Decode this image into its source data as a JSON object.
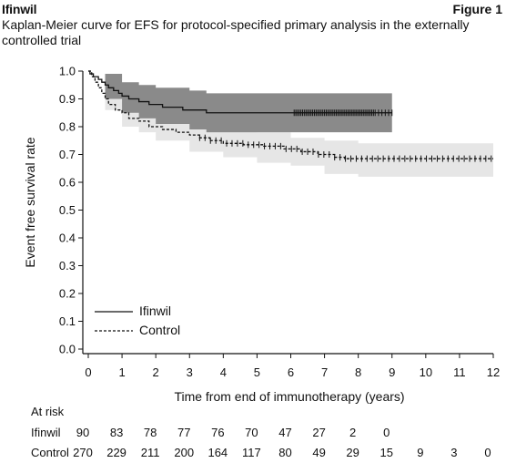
{
  "header": {
    "brand": "Ifinwil",
    "figure_label": "Figure 1",
    "subtitle": "Kaplan-Meier curve for EFS for protocol-specified primary analysis in the externally controlled trial"
  },
  "chart_data": {
    "type": "line",
    "subtype": "kaplan-meier",
    "xlabel": "Time from end of immunotherapy (years)",
    "ylabel": "Event free survival rate",
    "xlim": [
      0,
      12
    ],
    "ylim": [
      0,
      1
    ],
    "x_ticks": [
      0,
      1,
      2,
      3,
      4,
      5,
      6,
      7,
      8,
      9,
      10,
      11,
      12
    ],
    "y_ticks": [
      0.0,
      0.1,
      0.2,
      0.3,
      0.4,
      0.5,
      0.6,
      0.7,
      0.8,
      0.9,
      1.0
    ],
    "legend_position": "bottom-left",
    "series": [
      {
        "name": "Ifinwil",
        "color": "#111111",
        "line_style": "solid",
        "band_color": "#8a8a8a",
        "steps": [
          [
            0,
            1.0
          ],
          [
            0.05,
            0.99
          ],
          [
            0.15,
            0.98
          ],
          [
            0.3,
            0.97
          ],
          [
            0.4,
            0.96
          ],
          [
            0.5,
            0.95
          ],
          [
            0.6,
            0.94
          ],
          [
            0.75,
            0.93
          ],
          [
            0.9,
            0.92
          ],
          [
            1.0,
            0.91
          ],
          [
            1.2,
            0.9
          ],
          [
            1.5,
            0.89
          ],
          [
            1.8,
            0.88
          ],
          [
            2.2,
            0.87
          ],
          [
            2.8,
            0.86
          ],
          [
            3.5,
            0.85
          ],
          [
            9.0,
            0.85
          ]
        ],
        "band": [
          [
            0,
            1.0,
            1.0
          ],
          [
            0.5,
            0.99,
            0.9
          ],
          [
            1.0,
            0.96,
            0.85
          ],
          [
            1.5,
            0.95,
            0.83
          ],
          [
            2.0,
            0.94,
            0.81
          ],
          [
            3.0,
            0.93,
            0.79
          ],
          [
            3.5,
            0.92,
            0.78
          ],
          [
            9.0,
            0.92,
            0.76
          ]
        ],
        "censor_x": [
          6.1,
          6.15,
          6.2,
          6.25,
          6.3,
          6.35,
          6.4,
          6.45,
          6.5,
          6.55,
          6.6,
          6.65,
          6.7,
          6.75,
          6.8,
          6.85,
          6.9,
          6.95,
          7.0,
          7.05,
          7.1,
          7.15,
          7.2,
          7.25,
          7.3,
          7.35,
          7.4,
          7.45,
          7.5,
          7.55,
          7.6,
          7.65,
          7.7,
          7.75,
          7.8,
          7.85,
          7.9,
          7.95,
          8.0,
          8.05,
          8.1,
          8.15,
          8.2,
          8.25,
          8.3,
          8.35,
          8.4,
          8.45,
          8.5,
          8.6,
          8.7,
          8.8,
          8.9,
          9.0
        ]
      },
      {
        "name": "Control",
        "color": "#111111",
        "line_style": "dashed",
        "band_color": "#e6e6e6",
        "steps": [
          [
            0,
            1.0
          ],
          [
            0.1,
            0.98
          ],
          [
            0.2,
            0.96
          ],
          [
            0.3,
            0.94
          ],
          [
            0.4,
            0.92
          ],
          [
            0.5,
            0.9
          ],
          [
            0.6,
            0.88
          ],
          [
            0.8,
            0.86
          ],
          [
            1.0,
            0.85
          ],
          [
            1.2,
            0.83
          ],
          [
            1.5,
            0.82
          ],
          [
            1.8,
            0.8
          ],
          [
            2.2,
            0.79
          ],
          [
            2.6,
            0.78
          ],
          [
            3.0,
            0.77
          ],
          [
            3.3,
            0.76
          ],
          [
            3.6,
            0.75
          ],
          [
            4.0,
            0.74
          ],
          [
            4.6,
            0.735
          ],
          [
            5.2,
            0.73
          ],
          [
            5.8,
            0.72
          ],
          [
            6.3,
            0.71
          ],
          [
            6.8,
            0.7
          ],
          [
            7.3,
            0.69
          ],
          [
            7.6,
            0.685
          ],
          [
            12.0,
            0.685
          ]
        ],
        "band": [
          [
            0,
            1.0,
            1.0
          ],
          [
            0.5,
            0.94,
            0.86
          ],
          [
            1.0,
            0.89,
            0.8
          ],
          [
            1.5,
            0.86,
            0.78
          ],
          [
            2.0,
            0.84,
            0.75
          ],
          [
            3.0,
            0.82,
            0.71
          ],
          [
            4.0,
            0.8,
            0.69
          ],
          [
            5.0,
            0.78,
            0.67
          ],
          [
            6.0,
            0.76,
            0.66
          ],
          [
            7.0,
            0.75,
            0.63
          ],
          [
            8.0,
            0.74,
            0.62
          ],
          [
            12.0,
            0.74,
            0.62
          ]
        ]
      }
    ]
  },
  "risk_table": {
    "title": "At risk",
    "times": [
      0,
      1,
      2,
      3,
      4,
      5,
      6,
      7,
      8,
      9,
      10,
      11,
      12
    ],
    "rows": [
      {
        "label": "Ifinwil",
        "values": [
          "90",
          "83",
          "78",
          "77",
          "76",
          "70",
          "47",
          "27",
          "2",
          "0",
          "",
          "",
          ""
        ]
      },
      {
        "label": "Control",
        "values": [
          "270",
          "229",
          "211",
          "200",
          "164",
          "117",
          "80",
          "49",
          "29",
          "15",
          "9",
          "3",
          "0"
        ]
      }
    ]
  }
}
